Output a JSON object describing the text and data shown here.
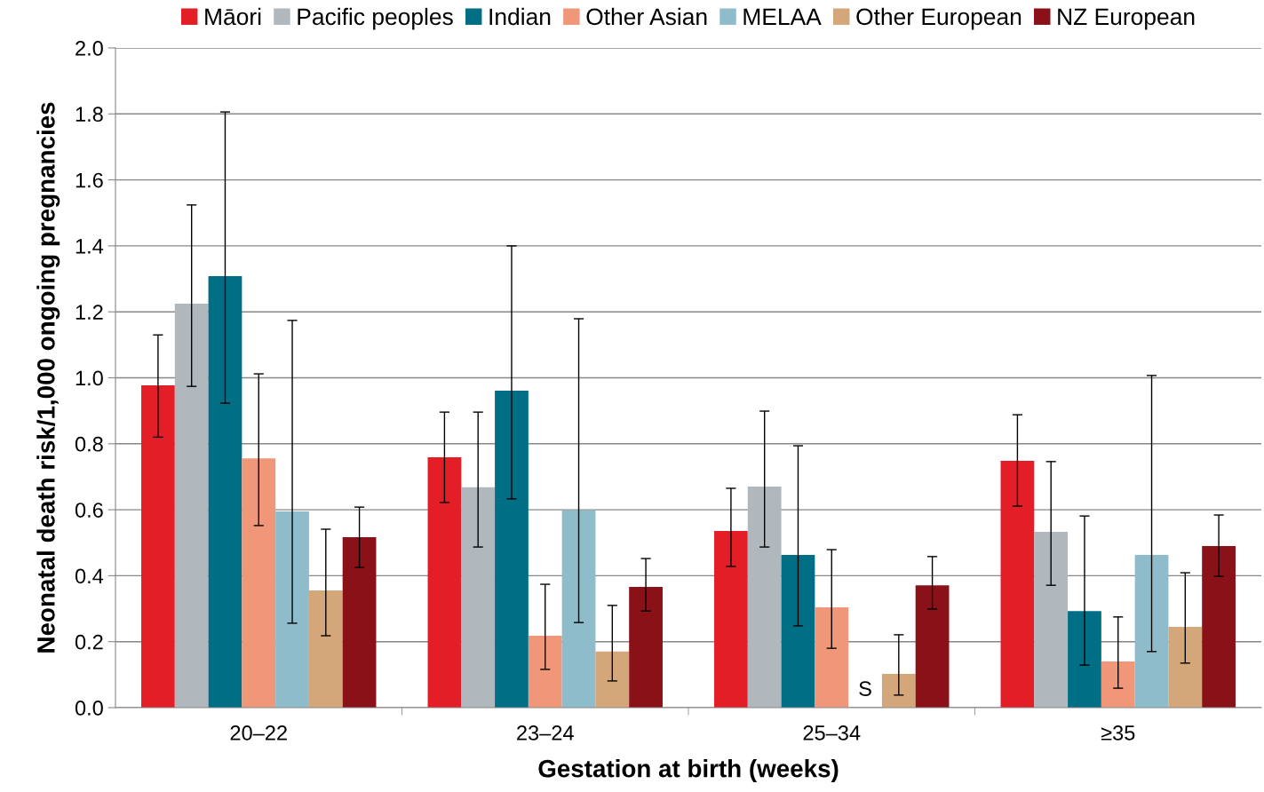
{
  "chart_data": {
    "type": "bar",
    "xlabel": "Gestation at birth (weeks)",
    "ylabel": "Neonatal death risk/1,000 ongoing pregnancies",
    "categories": [
      "20–22",
      "23–24",
      "25–34",
      "≥35"
    ],
    "series": [
      {
        "name": "Māori",
        "color": "#e31e26",
        "values": [
          0.977,
          0.759,
          0.536,
          0.748
        ],
        "errors": [
          [
            0.82,
            1.13
          ],
          [
            0.622,
            0.896
          ],
          [
            0.428,
            0.665
          ],
          [
            0.611,
            0.888
          ]
        ]
      },
      {
        "name": "Pacific peoples",
        "color": "#b0b7bd",
        "values": [
          1.225,
          0.668,
          0.67,
          0.533
        ],
        "errors": [
          [
            0.974,
            1.524
          ],
          [
            0.487,
            0.896
          ],
          [
            0.487,
            0.899
          ],
          [
            0.371,
            0.746
          ]
        ]
      },
      {
        "name": "Indian",
        "color": "#006f86",
        "values": [
          1.308,
          0.961,
          0.463,
          0.293
        ],
        "errors": [
          [
            0.923,
            1.806
          ],
          [
            0.633,
            1.4
          ],
          [
            0.248,
            0.794
          ],
          [
            0.129,
            0.581
          ]
        ]
      },
      {
        "name": "Other Asian",
        "color": "#f0977a",
        "values": [
          0.756,
          0.218,
          0.304,
          0.14
        ],
        "errors": [
          [
            0.552,
            1.012
          ],
          [
            0.116,
            0.374
          ],
          [
            0.18,
            0.479
          ],
          [
            0.059,
            0.275
          ]
        ]
      },
      {
        "name": "MELAA",
        "color": "#8fbccb",
        "values": [
          0.595,
          0.598,
          null,
          0.463
        ],
        "errors": [
          [
            0.256,
            1.174
          ],
          [
            0.258,
            1.179
          ],
          null,
          [
            0.17,
            1.007
          ]
        ]
      },
      {
        "name": "Other European",
        "color": "#d4a77a",
        "values": [
          0.355,
          0.17,
          0.102,
          0.245
        ],
        "errors": [
          [
            0.218,
            0.541
          ],
          [
            0.081,
            0.31
          ],
          [
            0.038,
            0.221
          ],
          [
            0.135,
            0.409
          ]
        ]
      },
      {
        "name": "NZ European",
        "color": "#8b1118",
        "values": [
          0.517,
          0.366,
          0.371,
          0.49
        ],
        "errors": [
          [
            0.425,
            0.608
          ],
          [
            0.293,
            0.452
          ],
          [
            0.299,
            0.458
          ],
          [
            0.398,
            0.584
          ]
        ]
      }
    ],
    "annotations": [
      {
        "text": "S",
        "x": "25–34",
        "y": 0
      }
    ],
    "ylim": [
      0,
      2.0
    ],
    "yticks": [
      {
        "value": 0,
        "label": "0.0"
      },
      0.2,
      0.4,
      0.6,
      0.8,
      {
        "value": 1,
        "label": "1.0"
      },
      1.2,
      1.4,
      1.6,
      1.8,
      {
        "value": 2,
        "label": "2.0"
      }
    ],
    "grid": "y",
    "legend": "top"
  }
}
